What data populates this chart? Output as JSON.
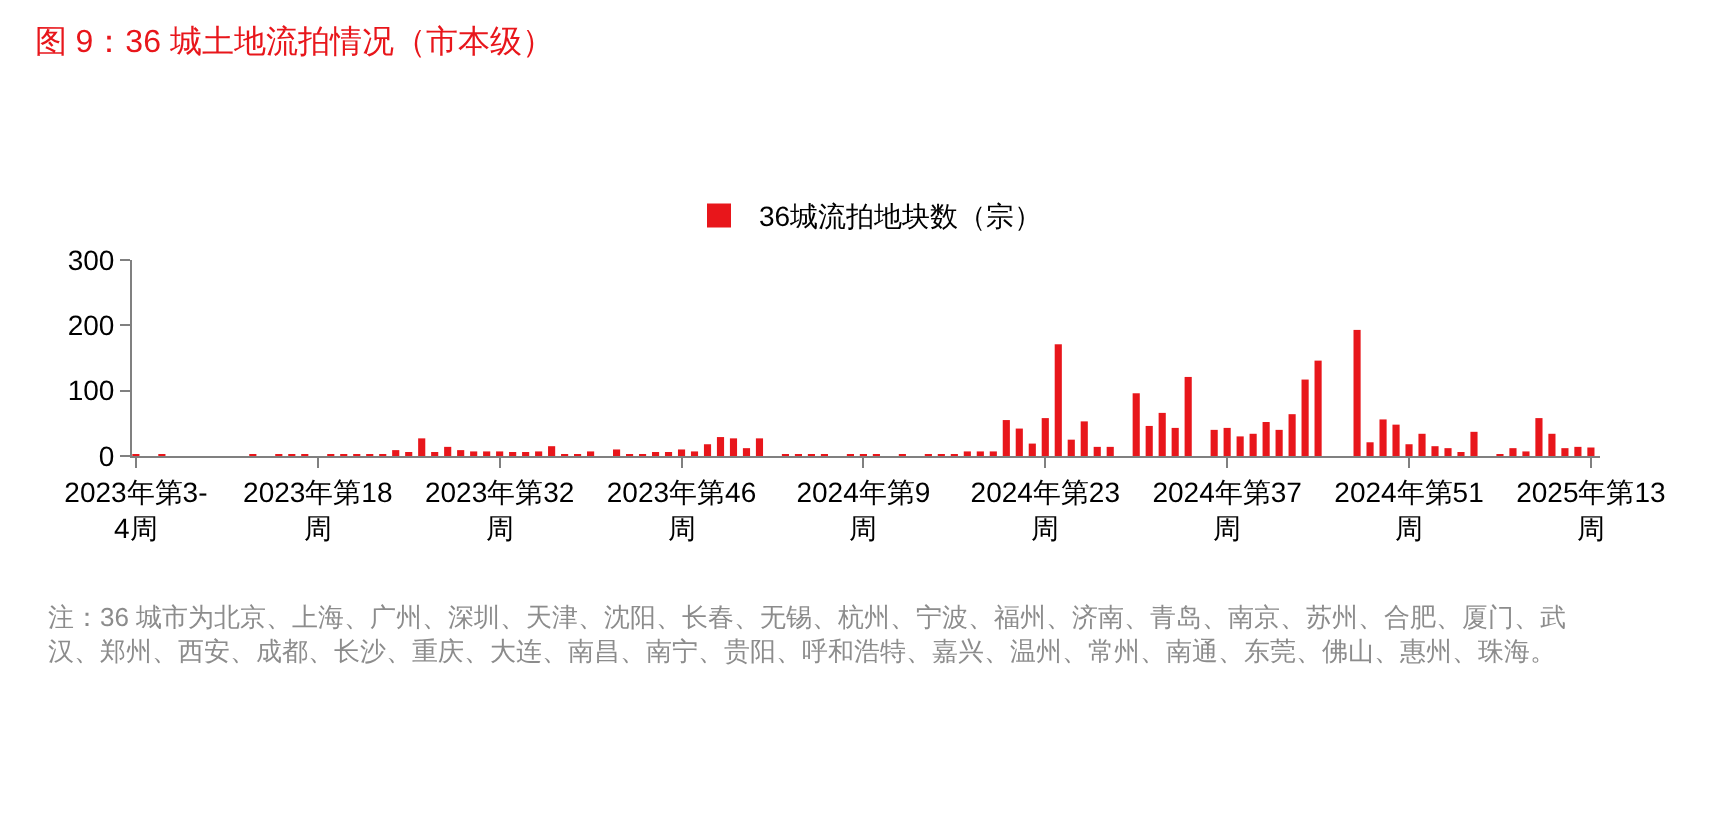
{
  "chart_data": {
    "type": "bar",
    "title": "图 9：36 城土地流拍情况（市本级）",
    "categories": [
      "2023年第3-\n4周",
      null,
      null,
      null,
      null,
      null,
      null,
      null,
      null,
      null,
      null,
      null,
      null,
      null,
      "2023年第18\n周",
      null,
      null,
      null,
      null,
      null,
      null,
      null,
      null,
      null,
      null,
      null,
      null,
      null,
      "2023年第32\n周",
      null,
      null,
      null,
      null,
      null,
      null,
      null,
      null,
      null,
      null,
      null,
      null,
      null,
      "2023年第46\n周",
      null,
      null,
      null,
      null,
      null,
      null,
      null,
      null,
      null,
      null,
      null,
      null,
      null,
      "2024年第9\n周",
      null,
      null,
      null,
      null,
      null,
      null,
      null,
      null,
      null,
      null,
      null,
      null,
      null,
      "2024年第23\n周",
      null,
      null,
      null,
      null,
      null,
      null,
      null,
      null,
      null,
      null,
      null,
      null,
      null,
      "2024年第37\n周",
      null,
      null,
      null,
      null,
      null,
      null,
      null,
      null,
      null,
      null,
      null,
      null,
      null,
      "2024年第51\n周",
      null,
      null,
      null,
      null,
      null,
      null,
      null,
      null,
      null,
      null,
      null,
      null,
      null,
      "2025年第13\n周"
    ],
    "series": [
      {
        "name": "36城流拍地块数（宗）",
        "color": "#e8161b",
        "values": [
          3,
          0,
          3,
          0,
          0,
          0,
          0,
          0,
          0,
          3,
          0,
          1,
          1,
          1,
          0,
          1,
          3,
          3,
          1,
          3,
          9,
          4,
          27,
          4,
          14,
          9,
          7,
          7,
          7,
          4,
          4,
          7,
          15,
          3,
          3,
          7,
          0,
          10,
          3,
          1,
          5,
          4,
          10,
          7,
          18,
          29,
          27,
          12,
          27,
          0,
          3,
          1,
          1,
          3,
          0,
          1,
          1,
          3,
          0,
          1,
          0,
          3,
          1,
          1,
          7,
          7,
          7,
          55,
          42,
          19,
          58,
          171,
          25,
          53,
          14,
          14,
          0,
          96,
          46,
          66,
          43,
          121,
          0,
          40,
          43,
          30,
          34,
          52,
          40,
          64,
          117,
          146,
          0,
          0,
          193,
          21,
          56,
          48,
          18,
          34,
          15,
          12,
          4,
          37,
          0,
          3,
          12,
          7,
          58,
          34,
          12,
          14,
          13
        ]
      }
    ],
    "ylim": [
      0,
      300
    ],
    "yticks": [
      0,
      100,
      200,
      300
    ],
    "legend": "top",
    "annotations": [
      "注：36 城市为北京、上海、广州、深圳、天津、沈阳、长春、无锡、杭州、宁波、福州、济南、青岛、南京、苏州、合肥、厦门、武汉、郑州、西安、成都、长沙、重庆、大连、南昌、南宁、贵阳、呼和浩特、嘉兴、温州、常州、南通、东莞、佛山、惠州、珠海。"
    ]
  }
}
